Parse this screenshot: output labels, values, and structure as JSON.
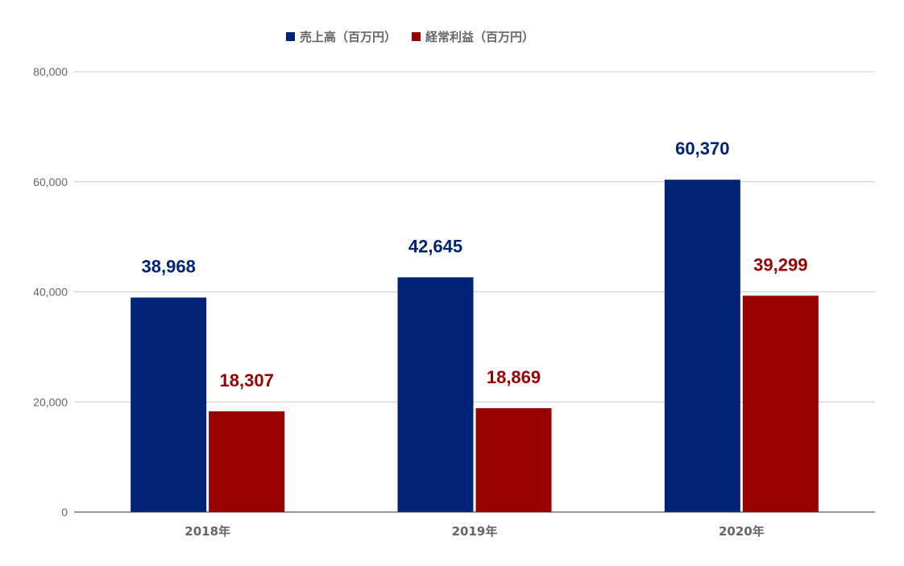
{
  "chart_data": {
    "type": "bar",
    "categories": [
      "2018年",
      "2019年",
      "2020年"
    ],
    "series": [
      {
        "name": "売上高（百万円）",
        "color": "#002277",
        "values": [
          38968,
          42645,
          60370
        ],
        "labels": [
          "38,968",
          "42,645",
          "60,370"
        ]
      },
      {
        "name": "経常利益（百万円）",
        "color": "#990000",
        "values": [
          18307,
          18869,
          39299
        ],
        "labels": [
          "18,307",
          "18,869",
          "39,299"
        ]
      }
    ],
    "ylim": [
      0,
      80000
    ],
    "yticks": [
      0,
      20000,
      40000,
      60000,
      80000
    ],
    "ytick_labels": [
      "0",
      "20,000",
      "40,000",
      "60,000",
      "80,000"
    ],
    "grid": true,
    "legend_position": "top"
  }
}
